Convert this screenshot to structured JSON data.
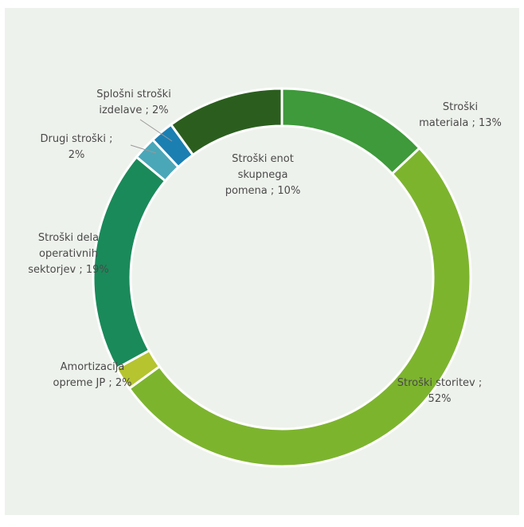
{
  "chart_data": {
    "type": "pie",
    "style": "donut",
    "slices": [
      {
        "label": "Stroški materiala ; 13%",
        "lines": [
          "Stroški",
          "materiala ; 13%"
        ],
        "value": 13,
        "color": "#3e9a3a"
      },
      {
        "label": "Stroški storitev ; 52%",
        "lines": [
          "Stroški storitev ;",
          "52%"
        ],
        "value": 52,
        "color": "#7db42e"
      },
      {
        "label": "Amortizacija opreme JP ; 2%",
        "lines": [
          "Amortizacija",
          "opreme JP ; 2%"
        ],
        "value": 2,
        "color": "#b5c42f"
      },
      {
        "label": "Stroški dela operativnih sektorjev ; 19%",
        "lines": [
          "Stroški dela",
          "operativnih",
          "sektorjev ; 19%"
        ],
        "value": 19,
        "color": "#1a8a5a"
      },
      {
        "label": "Drugi stroški ; 2%",
        "lines": [
          "Drugi stroški ;",
          "2%"
        ],
        "value": 2,
        "color": "#4aa7b8"
      },
      {
        "label": "Splošni stroški izdelave ; 2%",
        "lines": [
          "Splošni stroški",
          "izdelave ; 2%"
        ],
        "value": 2,
        "color": "#1b7fb2"
      },
      {
        "label": "Stroški enot skupnega pomena ; 10%",
        "lines": [
          "Stroški enot",
          "skupnega",
          "pomena ; 10%"
        ],
        "value": 10,
        "color": "#2b5e1e"
      }
    ]
  }
}
